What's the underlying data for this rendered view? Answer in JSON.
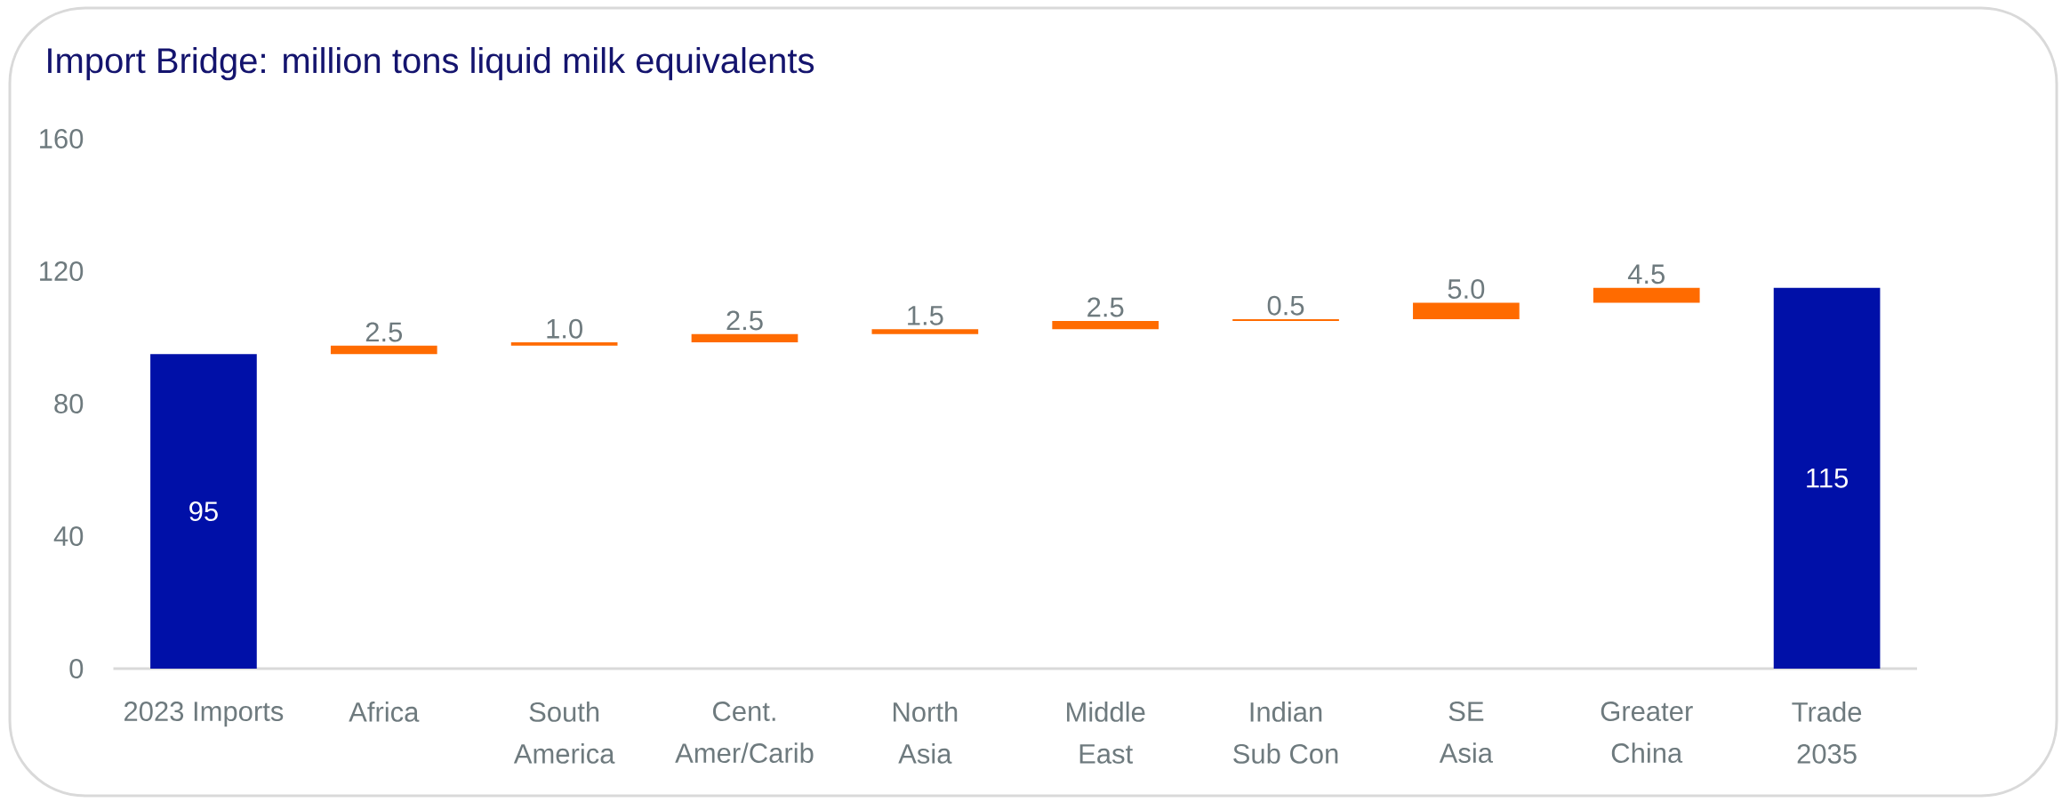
{
  "chart_data": {
    "type": "bar",
    "title": "Import Bridge: million tons liquid milk equivalents",
    "categories": [
      "2023 Imports",
      "Africa",
      "South\nAmerica",
      "Cent.\nAmer/Carib",
      "North\nAsia",
      "Middle\nEast",
      "Indian\nSub Con",
      "SE\nAsia",
      "Greater\nChina",
      "Trade\n2035"
    ],
    "values": [
      95,
      2.5,
      1.0,
      2.5,
      1.5,
      2.5,
      0.5,
      5.0,
      4.5,
      115
    ],
    "base": [
      0,
      95,
      97.5,
      98.5,
      101,
      102.5,
      105,
      105.5,
      110.5,
      0
    ],
    "colors": [
      "#0010a8",
      "#ff6b00",
      "#ff6b00",
      "#ff6b00",
      "#ff6b00",
      "#ff6b00",
      "#ff6b00",
      "#ff6b00",
      "#ff6b00",
      "#0010a8"
    ],
    "value_labels": [
      "95",
      "2.5",
      "1.0",
      "2.5",
      "1.5",
      "2.5",
      "0.5",
      "5.0",
      "4.5",
      "115"
    ],
    "ylim": [
      0,
      160
    ],
    "yticks": [
      0,
      40,
      80,
      120,
      160
    ]
  }
}
